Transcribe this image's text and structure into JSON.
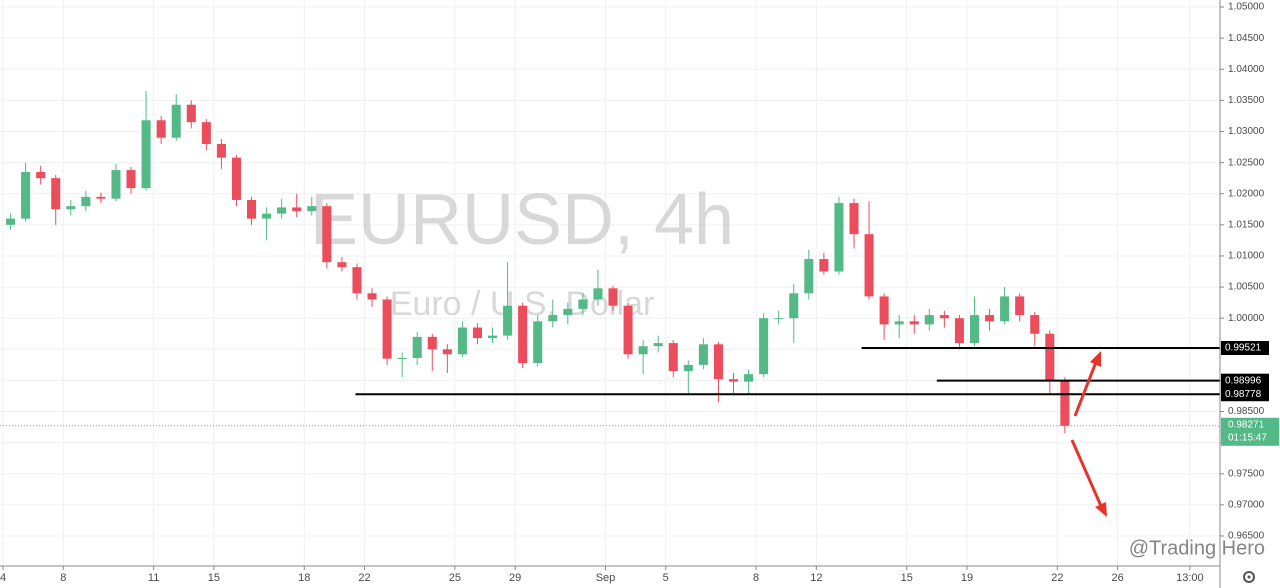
{
  "chart_data": {
    "type": "candlestick",
    "title": "EURUSD, 4h",
    "subtitle": "Euro / U.S. Dollar",
    "watermark": "@Trading Hero",
    "countdown": "01:15:47",
    "up_color": "#53b987",
    "down_color": "#eb4d5c",
    "grid": true,
    "xlim": [
      -0.1,
      40.4
    ],
    "ylim": [
      0.96018,
      1.05113
    ],
    "xticks": [
      {
        "value": 0,
        "label": "4"
      },
      {
        "value": 2,
        "label": "8"
      },
      {
        "value": 5,
        "label": "11"
      },
      {
        "value": 7,
        "label": "15"
      },
      {
        "value": 10,
        "label": "18"
      },
      {
        "value": 12,
        "label": "22"
      },
      {
        "value": 15,
        "label": "25"
      },
      {
        "value": 17,
        "label": "29"
      },
      {
        "value": 20,
        "label": "Sep"
      },
      {
        "value": 22,
        "label": "5"
      },
      {
        "value": 25,
        "label": "8"
      },
      {
        "value": 27,
        "label": "12"
      },
      {
        "value": 30,
        "label": "15"
      },
      {
        "value": 32,
        "label": "19"
      },
      {
        "value": 35,
        "label": "22"
      },
      {
        "value": 37,
        "label": "26"
      },
      {
        "value": 39.4,
        "label": "13:00"
      }
    ],
    "yticks": [
      {
        "value": 0.965,
        "label": "0.96500"
      },
      {
        "value": 0.97,
        "label": "0.97000"
      },
      {
        "value": 0.975,
        "label": "0.97500"
      },
      {
        "value": 0.98,
        "label": "0.98000"
      },
      {
        "value": 0.985,
        "label": "0.98500"
      },
      {
        "value": 0.99,
        "label": "0.99000"
      },
      {
        "value": 0.995,
        "label": "0.99500"
      },
      {
        "value": 1.0,
        "label": "1.00000"
      },
      {
        "value": 1.005,
        "label": "1.00500"
      },
      {
        "value": 1.01,
        "label": "1.01000"
      },
      {
        "value": 1.015,
        "label": "1.01500"
      },
      {
        "value": 1.02,
        "label": "1.02000"
      },
      {
        "value": 1.025,
        "label": "1.02500"
      },
      {
        "value": 1.03,
        "label": "1.03000"
      },
      {
        "value": 1.035,
        "label": "1.03500"
      },
      {
        "value": 1.04,
        "label": "1.04000"
      },
      {
        "value": 1.045,
        "label": "1.04500"
      },
      {
        "value": 1.05,
        "label": "1.05000"
      }
    ],
    "levels": [
      {
        "value": 0.99521,
        "from": 28.5
      },
      {
        "value": 0.98996,
        "from": 31.0
      },
      {
        "value": 0.98778,
        "from": 11.7
      }
    ],
    "x": [
      0.25,
      0.75,
      1.25,
      1.75,
      2.25,
      2.75,
      3.25,
      3.75,
      4.25,
      4.75,
      5.25,
      5.75,
      6.25,
      6.75,
      7.25,
      7.75,
      8.25,
      8.75,
      9.25,
      9.75,
      10.25,
      10.75,
      11.25,
      11.75,
      12.25,
      12.75,
      13.25,
      13.75,
      14.25,
      14.75,
      15.25,
      15.75,
      16.25,
      16.75,
      17.25,
      17.75,
      18.25,
      18.75,
      19.25,
      19.75,
      20.25,
      20.75,
      21.25,
      21.75,
      22.25,
      22.75,
      23.25,
      23.75,
      24.25,
      24.75,
      25.25,
      25.75,
      26.25,
      26.75,
      27.25,
      27.75,
      28.25,
      28.75,
      29.25,
      29.75,
      30.25,
      30.75,
      31.25,
      31.75,
      32.25,
      32.75,
      33.25,
      33.75,
      34.25,
      34.75,
      35.25
    ],
    "open": [
      1.015,
      1.016,
      1.0235,
      1.0225,
      1.0175,
      1.018,
      1.0195,
      1.0192,
      1.0238,
      1.0209,
      1.0318,
      1.029,
      1.0343,
      1.0315,
      1.028,
      1.0258,
      1.019,
      1.016,
      1.0168,
      1.0178,
      1.0172,
      1.018,
      1.009,
      1.0082,
      1.004,
      1.003,
      0.9935,
      0.9936,
      0.997,
      0.995,
      0.9942,
      0.9985,
      0.9968,
      0.9972,
      1.002,
      0.9928,
      0.9995,
      1.0005,
      1.0015,
      1.003,
      1.0048,
      1.002,
      0.9942,
      0.9955,
      0.996,
      0.9915,
      0.9925,
      0.9958,
      0.9902,
      0.9898,
      0.991,
      1.0,
      1.0,
      1.004,
      1.0095,
      1.0075,
      1.0185,
      1.0135,
      1.0035,
      0.999,
      0.9995,
      0.999,
      1.0005,
      1.0,
      0.996,
      1.0005,
      0.9995,
      1.0035,
      1.0005,
      0.9975,
      0.99
    ],
    "high": [
      1.0168,
      1.025,
      1.0245,
      1.023,
      1.019,
      1.0205,
      1.0202,
      1.0248,
      1.0243,
      1.0365,
      1.0325,
      1.036,
      1.035,
      1.032,
      1.0288,
      1.0262,
      1.0195,
      1.0178,
      1.0192,
      1.02,
      1.0195,
      1.0185,
      1.0098,
      1.0088,
      1.0048,
      1.0035,
      0.9945,
      0.9978,
      0.9975,
      0.9958,
      0.9995,
      0.9992,
      0.9985,
      1.009,
      1.0025,
      1.0005,
      1.003,
      1.0025,
      1.004,
      1.0078,
      1.0052,
      1.0025,
      0.9965,
      0.9972,
      0.9965,
      0.9932,
      0.9968,
      0.9962,
      0.9912,
      0.9918,
      1.0008,
      1.0012,
      1.0055,
      1.011,
      1.0105,
      1.0195,
      1.0192,
      1.0188,
      1.004,
      1.0005,
      1.0005,
      1.0015,
      1.0012,
      1.0005,
      1.0035,
      1.0015,
      1.005,
      1.004,
      1.001,
      0.998,
      0.9905
    ],
    "low": [
      1.0142,
      1.0155,
      1.0215,
      1.015,
      1.0165,
      1.0172,
      1.0185,
      1.0188,
      1.02,
      1.0205,
      1.028,
      1.0285,
      1.0305,
      1.027,
      1.024,
      1.018,
      1.015,
      1.0125,
      1.016,
      1.0162,
      1.0165,
      1.008,
      1.0075,
      1.003,
      1.0018,
      0.9925,
      0.9905,
      0.9925,
      0.9915,
      0.9912,
      0.9938,
      0.9958,
      0.996,
      0.9965,
      0.992,
      0.9922,
      0.9985,
      0.999,
      1.0005,
      1.002,
      1.0012,
      0.9935,
      0.991,
      0.9945,
      0.9905,
      0.9878,
      0.9918,
      0.9865,
      0.988,
      0.9878,
      0.9905,
      0.999,
      0.996,
      1.003,
      1.007,
      1.007,
      1.0112,
      1.003,
      0.9965,
      0.9968,
      0.9975,
      0.998,
      0.9985,
      0.995,
      0.9955,
      0.998,
      0.999,
      0.9995,
      0.9955,
      0.988,
      0.9815
    ],
    "close": [
      1.016,
      1.0235,
      1.0225,
      1.0175,
      1.018,
      1.0195,
      1.0192,
      1.0238,
      1.0209,
      1.0318,
      1.029,
      1.0343,
      1.0315,
      1.028,
      1.0258,
      1.019,
      1.016,
      1.0168,
      1.0178,
      1.0172,
      1.018,
      1.009,
      1.0082,
      1.004,
      1.003,
      0.9935,
      0.9936,
      0.997,
      0.995,
      0.9942,
      0.9985,
      0.9968,
      0.9972,
      1.002,
      0.9928,
      0.9995,
      1.0005,
      1.0015,
      1.003,
      1.0048,
      1.002,
      0.9942,
      0.9955,
      0.996,
      0.9915,
      0.9925,
      0.9958,
      0.9902,
      0.9898,
      0.991,
      1.0,
      1.0,
      1.004,
      1.0095,
      1.0075,
      1.0185,
      1.0135,
      1.0035,
      0.999,
      0.9995,
      0.999,
      1.0005,
      1.0,
      0.996,
      1.0005,
      0.9995,
      1.0035,
      1.0005,
      0.9975,
      0.99,
      0.98271
    ]
  }
}
